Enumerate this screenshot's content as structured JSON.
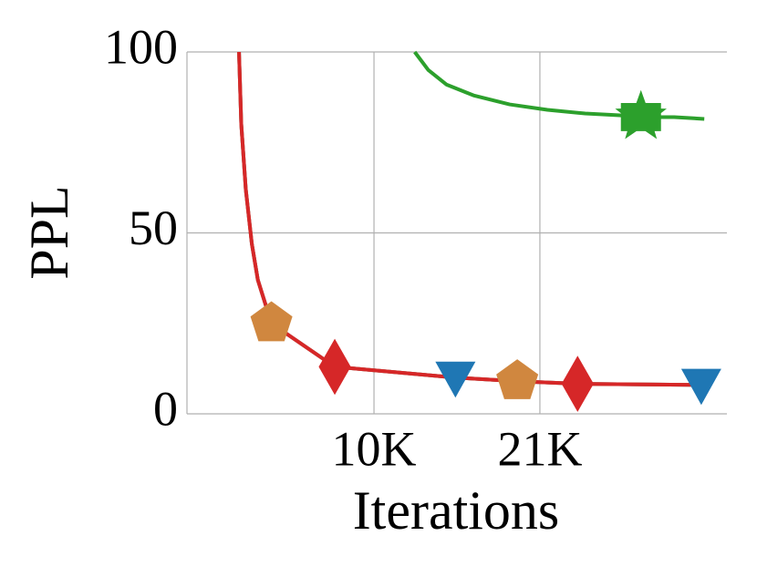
{
  "chart_data": {
    "type": "line",
    "xlabel": "Iterations",
    "ylabel": "PPL",
    "xlim": [
      -2400,
      33400
    ],
    "ylim": [
      0,
      100
    ],
    "xticks": [
      {
        "value": 10000,
        "label": "10K"
      },
      {
        "value": 21000,
        "label": "21K"
      }
    ],
    "yticks": [
      0,
      50,
      100
    ],
    "grid": true,
    "series": [
      {
        "color": "#1f77b4",
        "marker": "triangle-down",
        "markevery": [
          7,
          10
        ],
        "x": [
          1050,
          1200,
          1500,
          1900,
          2300,
          3200,
          7400,
          15400,
          19500,
          23500,
          31700
        ],
        "values": [
          100,
          80,
          62,
          47,
          37,
          25,
          13,
          10,
          9,
          8.3,
          8
        ]
      },
      {
        "color": "#d0873f",
        "marker": "pentagon",
        "markevery": [
          5,
          8
        ],
        "x": [
          1050,
          1200,
          1500,
          1900,
          2300,
          3200,
          7400,
          15400,
          19500,
          23500,
          31700
        ],
        "values": [
          100,
          80,
          62,
          47,
          37,
          25,
          13,
          10,
          9,
          8.3,
          8
        ]
      },
      {
        "color": "#d62728",
        "marker": "diamond",
        "markevery": [
          6,
          9
        ],
        "x": [
          1050,
          1200,
          1500,
          1900,
          2300,
          3200,
          7400,
          15400,
          19500,
          23500,
          31700
        ],
        "values": [
          100,
          80,
          62,
          47,
          37,
          25,
          13,
          10,
          9,
          8.3,
          8
        ]
      },
      {
        "color": "#2ca02c",
        "marker": "star-square",
        "markevery": [
          8
        ],
        "x": [
          12700,
          13600,
          14800,
          16600,
          19000,
          21500,
          24000,
          26300,
          27700,
          29900,
          31900
        ],
        "values": [
          100,
          95,
          91,
          88,
          85.5,
          84,
          83,
          82.5,
          82,
          82,
          81.5
        ]
      }
    ]
  }
}
